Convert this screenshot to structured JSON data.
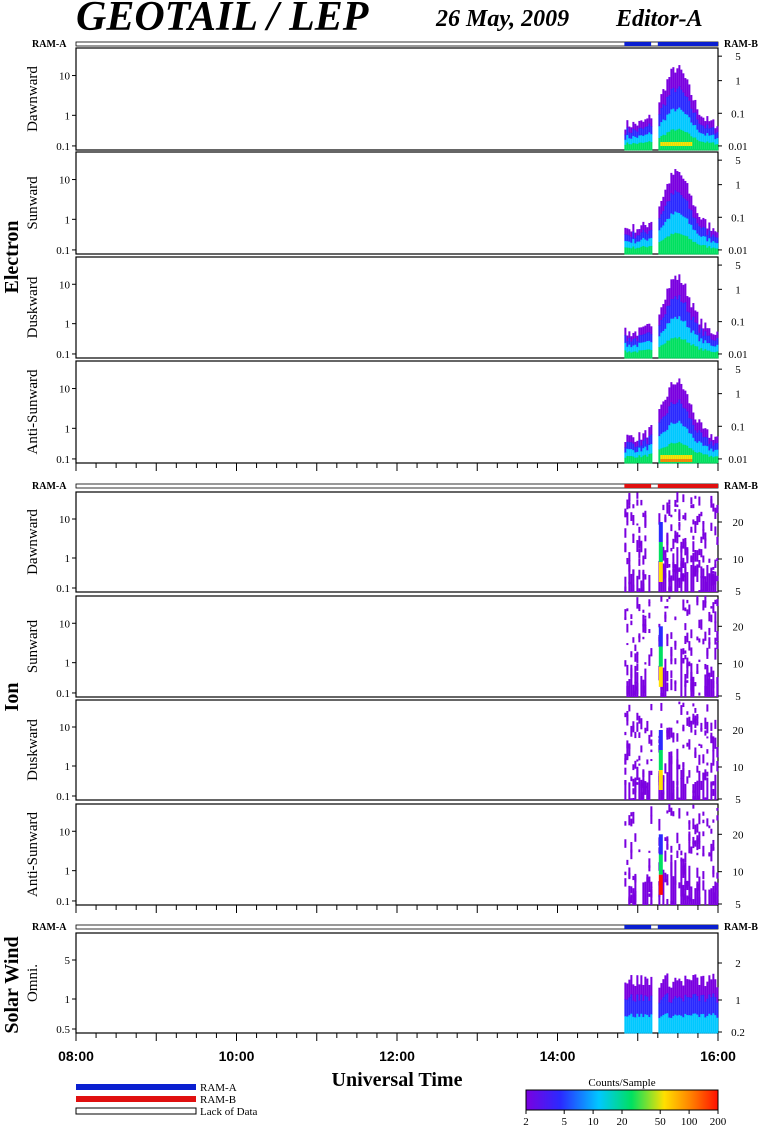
{
  "header": {
    "title": "GEOTAIL / LEP",
    "date": "26 May, 2009",
    "editor": "Editor-A"
  },
  "ram": {
    "a": "RAM-A",
    "b": "RAM-B"
  },
  "groups": {
    "electron": "Electron",
    "ion": "Ion",
    "solar_wind": "Solar Wind"
  },
  "xaxis": {
    "label": "Universal Time",
    "ticks": [
      "08:00",
      "10:00",
      "12:00",
      "14:00",
      "16:00"
    ]
  },
  "legend": {
    "items": [
      {
        "label": "RAM-A",
        "color": "#0a1fd0"
      },
      {
        "label": "RAM-B",
        "color": "#e01010"
      },
      {
        "label": "Lack of Data",
        "color": "#ffffff"
      }
    ]
  },
  "colorbar": {
    "title": "Counts/Sample",
    "ticks": [
      "2",
      "5",
      "10",
      "20",
      "50",
      "100",
      "200"
    ]
  },
  "chart_data": {
    "type": "heatmap",
    "x_range": [
      "08:00",
      "16:00"
    ],
    "data_coverage": {
      "start": "14:50",
      "gap": [
        "15:10",
        "15:15"
      ],
      "end": "16:00"
    },
    "panels": [
      {
        "group": "Electron",
        "name": "Dawnward",
        "left_ticks": [
          "10",
          "1",
          "0.1"
        ],
        "right_ticks": [
          "5",
          "1",
          "0.1",
          "0.01"
        ],
        "mode_bar": "RAM-A"
      },
      {
        "group": "Electron",
        "name": "Sunward",
        "left_ticks": [
          "10",
          "1",
          "0.1"
        ],
        "right_ticks": [
          "5",
          "1",
          "0.1",
          "0.01"
        ]
      },
      {
        "group": "Electron",
        "name": "Duskward",
        "left_ticks": [
          "10",
          "1",
          "0.1"
        ],
        "right_ticks": [
          "5",
          "1",
          "0.1",
          "0.01"
        ]
      },
      {
        "group": "Electron",
        "name": "Anti-Sunward",
        "left_ticks": [
          "10",
          "1",
          "0.1"
        ],
        "right_ticks": [
          "5",
          "1",
          "0.1",
          "0.01"
        ]
      },
      {
        "group": "Ion",
        "name": "Dawnward",
        "left_ticks": [
          "10",
          "1",
          "0.1"
        ],
        "right_ticks": [
          "20",
          "10",
          "5"
        ],
        "mode_bar": "RAM-B"
      },
      {
        "group": "Ion",
        "name": "Sunward",
        "left_ticks": [
          "10",
          "1",
          "0.1"
        ],
        "right_ticks": [
          "20",
          "10",
          "5"
        ]
      },
      {
        "group": "Ion",
        "name": "Duskward",
        "left_ticks": [
          "10",
          "1",
          "0.1"
        ],
        "right_ticks": [
          "20",
          "10",
          "5"
        ]
      },
      {
        "group": "Ion",
        "name": "Anti-Sunward",
        "left_ticks": [
          "10",
          "1",
          "0.1"
        ],
        "right_ticks": [
          "20",
          "10",
          "5"
        ]
      },
      {
        "group": "Solar Wind",
        "name": "Omni.",
        "left_ticks": [
          "5",
          "1",
          "0.5"
        ],
        "right_ticks": [
          "2",
          "1",
          "0.2"
        ],
        "mode_bar": "RAM-A"
      }
    ],
    "colorscale": [
      "#7a00e0",
      "#2a2aff",
      "#00c8ff",
      "#00e060",
      "#ffe000",
      "#ff8000",
      "#ff1000"
    ]
  }
}
